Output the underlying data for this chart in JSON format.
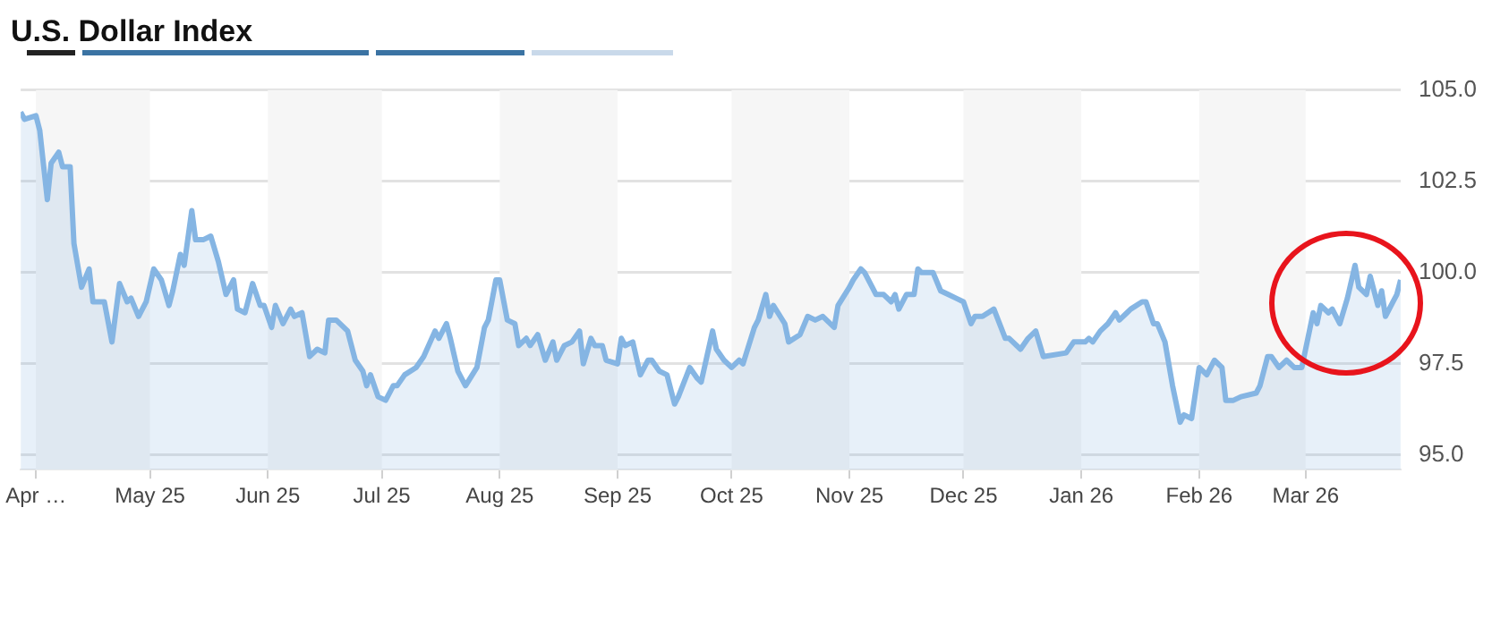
{
  "chart_data": {
    "type": "area",
    "title": "U.S. Dollar Index",
    "x": [
      "2025-03-28",
      "2025-03-29",
      "2025-04-01",
      "2025-04-02",
      "2025-04-04",
      "2025-04-05",
      "2025-04-07",
      "2025-04-08",
      "2025-04-10",
      "2025-04-11",
      "2025-04-13",
      "2025-04-15",
      "2025-04-16",
      "2025-04-19",
      "2025-04-21",
      "2025-04-23",
      "2025-04-25",
      "2025-04-26",
      "2025-04-28",
      "2025-04-30",
      "2025-05-02",
      "2025-05-04",
      "2025-05-06",
      "2025-05-07",
      "2025-05-09",
      "2025-05-10",
      "2025-05-12",
      "2025-05-13",
      "2025-05-15",
      "2025-05-17",
      "2025-05-19",
      "2025-05-21",
      "2025-05-23",
      "2025-05-24",
      "2025-05-26",
      "2025-05-28",
      "2025-05-30",
      "2025-05-31",
      "2025-06-02",
      "2025-06-03",
      "2025-06-05",
      "2025-06-07",
      "2025-06-08",
      "2025-06-10",
      "2025-06-12",
      "2025-06-14",
      "2025-06-16",
      "2025-06-17",
      "2025-06-19",
      "2025-06-22",
      "2025-06-24",
      "2025-06-26",
      "2025-06-27",
      "2025-06-28",
      "2025-06-30",
      "2025-07-02",
      "2025-07-04",
      "2025-07-05",
      "2025-07-07",
      "2025-07-10",
      "2025-07-12",
      "2025-07-15",
      "2025-07-16",
      "2025-07-18",
      "2025-07-19",
      "2025-07-21",
      "2025-07-23",
      "2025-07-26",
      "2025-07-28",
      "2025-07-29",
      "2025-07-31",
      "2025-08-01",
      "2025-08-03",
      "2025-08-05",
      "2025-08-06",
      "2025-08-08",
      "2025-08-09",
      "2025-08-11",
      "2025-08-13",
      "2025-08-15",
      "2025-08-16",
      "2025-08-18",
      "2025-08-20",
      "2025-08-22",
      "2025-08-23",
      "2025-08-25",
      "2025-08-26",
      "2025-08-28",
      "2025-08-29",
      "2025-09-01",
      "2025-09-02",
      "2025-09-03",
      "2025-09-05",
      "2025-09-07",
      "2025-09-09",
      "2025-09-10",
      "2025-09-12",
      "2025-09-14",
      "2025-09-16",
      "2025-09-17",
      "2025-09-20",
      "2025-09-22",
      "2025-09-23",
      "2025-09-26",
      "2025-09-27",
      "2025-09-29",
      "2025-10-01",
      "2025-10-03",
      "2025-10-04",
      "2025-10-07",
      "2025-10-08",
      "2025-10-10",
      "2025-10-11",
      "2025-10-12",
      "2025-10-15",
      "2025-10-16",
      "2025-10-19",
      "2025-10-21",
      "2025-10-23",
      "2025-10-25",
      "2025-10-28",
      "2025-10-29",
      "2025-11-01",
      "2025-11-02",
      "2025-11-04",
      "2025-11-05",
      "2025-11-07",
      "2025-11-08",
      "2025-11-10",
      "2025-11-12",
      "2025-11-13",
      "2025-11-14",
      "2025-11-16",
      "2025-11-18",
      "2025-11-19",
      "2025-11-20",
      "2025-11-23",
      "2025-11-25",
      "2025-11-27",
      "2025-11-29",
      "2025-12-01",
      "2025-12-03",
      "2025-12-04",
      "2025-12-06",
      "2025-12-09",
      "2025-12-12",
      "2025-12-13",
      "2025-12-16",
      "2025-12-18",
      "2025-12-20",
      "2025-12-22",
      "2025-12-28",
      "2025-12-30",
      "2026-01-02",
      "2026-01-03",
      "2026-01-04",
      "2026-01-06",
      "2026-01-08",
      "2026-01-10",
      "2026-01-11",
      "2026-01-13",
      "2026-01-14",
      "2026-01-17",
      "2026-01-18",
      "2026-01-20",
      "2026-01-21",
      "2026-01-23",
      "2026-01-25",
      "2026-01-27",
      "2026-01-28",
      "2026-01-30",
      "2026-02-01",
      "2026-02-03",
      "2026-02-05",
      "2026-02-07",
      "2026-02-08",
      "2026-02-10",
      "2026-02-12",
      "2026-02-16",
      "2026-02-17",
      "2026-02-19",
      "2026-02-20",
      "2026-02-22",
      "2026-02-24",
      "2026-02-26",
      "2026-02-28",
      "2026-03-02",
      "2026-03-03",
      "2026-03-04",
      "2026-03-05",
      "2026-03-07",
      "2026-03-08",
      "2026-03-10",
      "2026-03-12",
      "2026-03-14",
      "2026-03-15",
      "2026-03-17",
      "2026-03-18",
      "2026-03-20",
      "2026-03-21",
      "2026-03-22",
      "2026-03-24",
      "2026-03-25",
      "2026-03-26"
    ],
    "series": [
      {
        "color": "#85b5e3",
        "values": [
          104.4,
          104.2,
          104.3,
          103.9,
          102.0,
          103.0,
          103.3,
          102.9,
          102.9,
          100.8,
          99.6,
          100.1,
          99.2,
          99.2,
          98.1,
          99.7,
          99.2,
          99.3,
          98.8,
          99.2,
          100.1,
          99.8,
          99.1,
          99.5,
          100.5,
          100.2,
          101.7,
          100.9,
          100.9,
          101.0,
          100.3,
          99.4,
          99.8,
          99.0,
          98.9,
          99.7,
          99.1,
          99.1,
          98.5,
          99.1,
          98.6,
          99.0,
          98.8,
          98.9,
          97.7,
          97.9,
          97.8,
          98.7,
          98.7,
          98.4,
          97.6,
          97.3,
          96.9,
          97.2,
          96.6,
          96.5,
          96.9,
          96.9,
          97.2,
          97.4,
          97.7,
          98.4,
          98.2,
          98.6,
          98.2,
          97.3,
          96.9,
          97.4,
          98.5,
          98.7,
          99.8,
          99.8,
          98.7,
          98.6,
          98.0,
          98.2,
          98.0,
          98.3,
          97.6,
          98.1,
          97.6,
          98.0,
          98.1,
          98.4,
          97.5,
          98.2,
          98.0,
          98.0,
          97.6,
          97.5,
          98.2,
          98.0,
          98.1,
          97.2,
          97.6,
          97.6,
          97.3,
          97.2,
          96.4,
          96.6,
          97.4,
          97.1,
          97.0,
          98.4,
          97.9,
          97.6,
          97.4,
          97.6,
          97.5,
          98.5,
          98.7,
          99.4,
          98.8,
          99.1,
          98.6,
          98.1,
          98.3,
          98.8,
          98.7,
          98.8,
          98.5,
          99.1,
          99.6,
          99.8,
          100.1,
          100.0,
          99.6,
          99.4,
          99.4,
          99.2,
          99.4,
          99.0,
          99.4,
          99.4,
          100.1,
          100.0,
          100.0,
          99.5,
          99.4,
          99.3,
          99.2,
          98.6,
          98.8,
          98.8,
          99.0,
          98.2,
          98.2,
          97.9,
          98.2,
          98.4,
          97.7,
          97.8,
          98.1,
          98.1,
          98.2,
          98.1,
          98.4,
          98.6,
          98.9,
          98.7,
          98.9,
          99.0,
          99.2,
          99.2,
          98.6,
          98.6,
          98.1,
          96.9,
          95.9,
          96.1,
          96.0,
          97.4,
          97.2,
          97.6,
          97.4,
          96.5,
          96.5,
          96.6,
          96.7,
          96.9,
          97.7,
          97.7,
          97.4,
          97.6,
          97.4,
          97.4,
          98.4,
          98.9,
          98.6,
          99.1,
          98.9,
          99.0,
          98.6,
          99.3,
          100.2,
          99.6,
          99.4,
          99.9,
          99.1,
          99.5,
          98.8,
          99.2,
          99.4,
          99.8
        ]
      }
    ],
    "xlim": [
      "2025-03-28",
      "2026-03-26"
    ],
    "xticks": [
      {
        "value": "2025-04-01",
        "label": "Apr …"
      },
      {
        "value": "2025-05-01",
        "label": "May 25"
      },
      {
        "value": "2025-06-01",
        "label": "Jun 25"
      },
      {
        "value": "2025-07-01",
        "label": "Jul 25"
      },
      {
        "value": "2025-08-01",
        "label": "Aug 25"
      },
      {
        "value": "2025-09-01",
        "label": "Sep 25"
      },
      {
        "value": "2025-10-01",
        "label": "Oct 25"
      },
      {
        "value": "2025-11-01",
        "label": "Nov 25"
      },
      {
        "value": "2025-12-01",
        "label": "Dec 25"
      },
      {
        "value": "2026-01-01",
        "label": "Jan 26"
      },
      {
        "value": "2026-02-01",
        "label": "Feb 26"
      },
      {
        "value": "2026-03-01",
        "label": "Mar 26"
      }
    ],
    "ylim": [
      94.6,
      105
    ],
    "yticks": [
      {
        "value": 95,
        "label": "95.0"
      },
      {
        "value": 97.5,
        "label": "97.5"
      },
      {
        "value": 100,
        "label": "100.0"
      },
      {
        "value": 102.5,
        "label": "102.5"
      },
      {
        "value": 105,
        "label": "105.0"
      }
    ],
    "grid": "y",
    "bands": [
      {
        "axis": "x",
        "from": "2025-04-01",
        "to": "2025-05-01",
        "color": "#f6f6f6"
      },
      {
        "axis": "x",
        "from": "2025-06-01",
        "to": "2025-07-01",
        "color": "#f6f6f6"
      },
      {
        "axis": "x",
        "from": "2025-08-01",
        "to": "2025-09-01",
        "color": "#f6f6f6"
      },
      {
        "axis": "x",
        "from": "2025-10-01",
        "to": "2025-11-01",
        "color": "#f6f6f6"
      },
      {
        "axis": "x",
        "from": "2025-12-01",
        "to": "2026-01-01",
        "color": "#f6f6f6"
      },
      {
        "axis": "x",
        "from": "2026-02-01",
        "to": "2026-03-01",
        "color": "#f6f6f6"
      }
    ]
  }
}
